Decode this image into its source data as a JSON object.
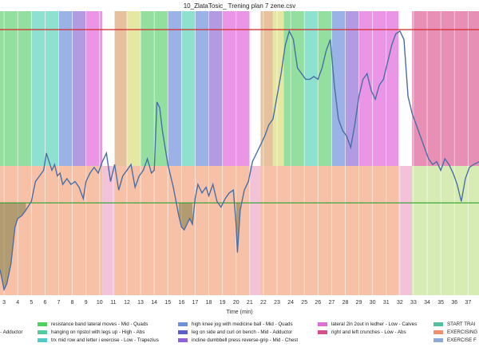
{
  "chart_data": {
    "type": "line",
    "title": "10_ZlataTosic_ Trening plan 7 zene.csv",
    "xlabel": "Time (min)",
    "ylabel": "",
    "xlim": [
      2.7,
      37.8
    ],
    "ylim": [
      0,
      1
    ],
    "x_ticks": [
      3,
      4,
      5,
      6,
      7,
      8,
      9,
      10,
      11,
      12,
      13,
      14,
      15,
      16,
      17,
      18,
      19,
      20,
      21,
      22,
      23,
      24,
      25,
      26,
      27,
      28,
      29,
      30,
      31,
      32,
      33,
      34,
      35,
      36,
      37
    ],
    "reference_lines": [
      {
        "value": 0.935,
        "color": "#d62728"
      },
      {
        "value": 0.325,
        "color": "#2ca02c"
      }
    ],
    "zone_split": 0.455,
    "upper_bands": [
      {
        "start": 2.7,
        "end": 4.0,
        "color": "#93dfa0"
      },
      {
        "start": 4.0,
        "end": 5.0,
        "color": "#93dfa0"
      },
      {
        "start": 5.0,
        "end": 6.0,
        "color": "#8ee0cf"
      },
      {
        "start": 6.0,
        "end": 7.0,
        "color": "#8ee0cf"
      },
      {
        "start": 7.0,
        "end": 8.0,
        "color": "#9bb2e6"
      },
      {
        "start": 8.0,
        "end": 9.0,
        "color": "#b39be3"
      },
      {
        "start": 9.0,
        "end": 10.0,
        "color": "#ea95e6"
      },
      {
        "start": 10.0,
        "end": 10.2,
        "color": "#ea95e6"
      },
      {
        "start": 11.1,
        "end": 12.0,
        "color": "#e5c29d"
      },
      {
        "start": 12.0,
        "end": 13.0,
        "color": "#e6e7a2"
      },
      {
        "start": 13.0,
        "end": 14.0,
        "color": "#93dfa0"
      },
      {
        "start": 14.0,
        "end": 15.0,
        "color": "#93dfa0"
      },
      {
        "start": 15.0,
        "end": 16.0,
        "color": "#9bb2e6"
      },
      {
        "start": 16.0,
        "end": 17.0,
        "color": "#8ee0cf"
      },
      {
        "start": 17.0,
        "end": 18.0,
        "color": "#9bb2e6"
      },
      {
        "start": 18.0,
        "end": 19.0,
        "color": "#b39be3"
      },
      {
        "start": 19.0,
        "end": 20.0,
        "color": "#ea95e6"
      },
      {
        "start": 20.0,
        "end": 21.0,
        "color": "#ea95e6"
      },
      {
        "start": 21.8,
        "end": 22.7,
        "color": "#e5c29d"
      },
      {
        "start": 22.7,
        "end": 23.5,
        "color": "#e6e7a2"
      },
      {
        "start": 23.5,
        "end": 25.0,
        "color": "#93dfa0"
      },
      {
        "start": 25.0,
        "end": 26.0,
        "color": "#8ee0cf"
      },
      {
        "start": 26.0,
        "end": 27.0,
        "color": "#93dfa0"
      },
      {
        "start": 27.0,
        "end": 28.0,
        "color": "#9bb2e6"
      },
      {
        "start": 28.0,
        "end": 29.0,
        "color": "#b39be3"
      },
      {
        "start": 29.0,
        "end": 30.0,
        "color": "#ea95e6"
      },
      {
        "start": 30.0,
        "end": 31.0,
        "color": "#ea95e6"
      },
      {
        "start": 31.0,
        "end": 31.9,
        "color": "#ea95e6"
      },
      {
        "start": 32.9,
        "end": 37.8,
        "color": "#e78fb4"
      }
    ],
    "lower_bands": [
      {
        "start": 2.7,
        "end": 10.2,
        "color": "#f7c1a7"
      },
      {
        "start": 10.2,
        "end": 11.1,
        "color": "#f2c2d8"
      },
      {
        "start": 11.1,
        "end": 21.0,
        "color": "#f7c1a7"
      },
      {
        "start": 21.0,
        "end": 21.8,
        "color": "#f2c2d8"
      },
      {
        "start": 21.8,
        "end": 31.9,
        "color": "#f7c1a7"
      },
      {
        "start": 31.9,
        "end": 32.9,
        "color": "#f2c2d8"
      },
      {
        "start": 32.9,
        "end": 37.8,
        "color": "#d7ecb4"
      }
    ],
    "series": [
      {
        "color": "#4a6fa5",
        "x": [
          2.7,
          3.0,
          3.2,
          3.5,
          3.8,
          4.0,
          4.3,
          4.6,
          5.0,
          5.3,
          5.6,
          5.9,
          6.1,
          6.3,
          6.5,
          6.7,
          6.9,
          7.1,
          7.3,
          7.6,
          7.9,
          8.2,
          8.5,
          8.8,
          9.0,
          9.3,
          9.6,
          9.9,
          10.2,
          10.5,
          10.8,
          11.1,
          11.4,
          11.7,
          12.0,
          12.3,
          12.6,
          12.9,
          13.2,
          13.5,
          13.8,
          14.0,
          14.2,
          14.4,
          14.6,
          14.8,
          15.0,
          15.2,
          15.4,
          15.6,
          15.8,
          16.0,
          16.2,
          16.4,
          16.6,
          16.8,
          17.0,
          17.2,
          17.5,
          17.8,
          18.0,
          18.3,
          18.6,
          18.9,
          19.2,
          19.5,
          19.8,
          20.0,
          20.1,
          20.3,
          20.6,
          20.9,
          21.2,
          21.5,
          21.8,
          22.1,
          22.4,
          22.7,
          23.0,
          23.3,
          23.6,
          23.9,
          24.2,
          24.5,
          24.8,
          25.1,
          25.4,
          25.7,
          26.0,
          26.3,
          26.6,
          26.9,
          27.2,
          27.5,
          27.8,
          28.1,
          28.4,
          28.7,
          29.0,
          29.3,
          29.6,
          29.9,
          30.2,
          30.5,
          30.8,
          31.1,
          31.4,
          31.7,
          32.0,
          32.3,
          32.6,
          32.9,
          33.2,
          33.5,
          33.8,
          34.1,
          34.4,
          34.7,
          35.0,
          35.3,
          35.6,
          35.9,
          36.2,
          36.5,
          36.8,
          37.1,
          37.4,
          37.8
        ],
        "y": [
          0.09,
          0.02,
          0.04,
          0.11,
          0.24,
          0.27,
          0.28,
          0.3,
          0.33,
          0.4,
          0.42,
          0.44,
          0.5,
          0.47,
          0.44,
          0.46,
          0.42,
          0.43,
          0.39,
          0.41,
          0.39,
          0.4,
          0.38,
          0.34,
          0.4,
          0.43,
          0.45,
          0.43,
          0.47,
          0.5,
          0.4,
          0.46,
          0.37,
          0.42,
          0.44,
          0.46,
          0.38,
          0.42,
          0.44,
          0.48,
          0.43,
          0.44,
          0.68,
          0.66,
          0.58,
          0.52,
          0.46,
          0.42,
          0.38,
          0.33,
          0.28,
          0.24,
          0.23,
          0.25,
          0.27,
          0.25,
          0.34,
          0.39,
          0.36,
          0.38,
          0.35,
          0.39,
          0.33,
          0.31,
          0.34,
          0.36,
          0.37,
          0.25,
          0.15,
          0.3,
          0.37,
          0.4,
          0.47,
          0.5,
          0.53,
          0.56,
          0.6,
          0.62,
          0.7,
          0.78,
          0.88,
          0.93,
          0.9,
          0.8,
          0.78,
          0.76,
          0.76,
          0.77,
          0.76,
          0.8,
          0.86,
          0.9,
          0.74,
          0.62,
          0.58,
          0.56,
          0.52,
          0.6,
          0.7,
          0.76,
          0.78,
          0.72,
          0.69,
          0.74,
          0.76,
          0.82,
          0.88,
          0.92,
          0.93,
          0.9,
          0.7,
          0.64,
          0.6,
          0.56,
          0.52,
          0.48,
          0.46,
          0.47,
          0.44,
          0.48,
          0.46,
          0.43,
          0.39,
          0.33,
          0.41,
          0.45,
          0.46,
          0.47
        ]
      }
    ],
    "legend": [
      {
        "label": "w - Adductor",
        "color": null
      },
      {
        "label": "resistance band lateral moves - Mid -  Quads",
        "color": "#4fd15e"
      },
      {
        "label": "hanging on ripstol with legs up - High -  Abs",
        "color": "#52cba3"
      },
      {
        "label": "trx mid row and letter i exercise - Low -  Trapezius",
        "color": "#52c9c9"
      },
      {
        "label": "high knee jog with medicine ball - Mid -  Quads",
        "color": "#6b93d6"
      },
      {
        "label": "leg on side and curl on bench - Mid -  Adductor",
        "color": "#5b5fc7"
      },
      {
        "label": "incline dumbbell press reverse-grip - Mid -  Chest",
        "color": "#8e63d9"
      },
      {
        "label": "lateral 2in 2out in ledher - Low -  Calves",
        "color": "#da6fd6"
      },
      {
        "label": "right and left crunches - Low -  Abs",
        "color": "#d4508f"
      },
      {
        "label": "START TRAI",
        "color": "#52bfa0"
      },
      {
        "label": "EXERCISING",
        "color": "#f0906e"
      },
      {
        "label": "EXERCISE F",
        "color": "#8fa8d8"
      }
    ]
  }
}
